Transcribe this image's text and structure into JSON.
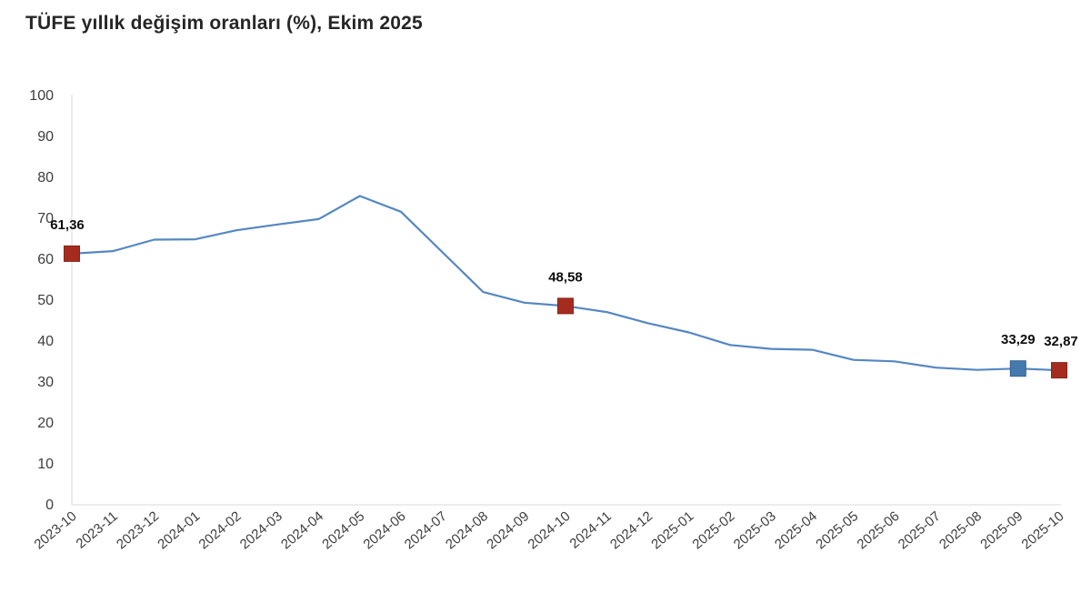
{
  "title": "TÜFE yıllık değişim oranları (%), Ekim 2025",
  "colors": {
    "line": "#5587c2",
    "marker_red": "#a62b1f",
    "marker_red_border": "#8c2218",
    "marker_blue": "#4679ae",
    "marker_blue_border": "#36608e",
    "axis_line": "#d9d9d9",
    "tick_text": "#3d3d3d",
    "title_text": "#262626",
    "value_label_text": "#0d0d0d"
  },
  "chart_data": {
    "type": "line",
    "title": "TÜFE yıllık değişim oranları (%), Ekim 2025",
    "categories": [
      "2023-10",
      "2023-11",
      "2023-12",
      "2024-01",
      "2024-02",
      "2024-03",
      "2024-04",
      "2024-05",
      "2024-06",
      "2024-07",
      "2024-08",
      "2024-09",
      "2024-10",
      "2024-11",
      "2024-12",
      "2025-01",
      "2025-02",
      "2025-03",
      "2025-04",
      "2025-05",
      "2025-06",
      "2025-07",
      "2025-08",
      "2025-09",
      "2025-10"
    ],
    "values": [
      61.36,
      61.98,
      64.77,
      64.86,
      67.07,
      68.5,
      69.8,
      75.45,
      71.6,
      61.78,
      51.97,
      49.38,
      48.58,
      47.09,
      44.38,
      42.12,
      39.05,
      38.1,
      37.86,
      35.41,
      35.05,
      33.52,
      32.95,
      33.29,
      32.87
    ],
    "xlabel": "",
    "ylabel": "",
    "ylim": [
      0,
      100
    ],
    "ytick_step": 10,
    "grid": false,
    "legend": false,
    "x_label_rotation": -40,
    "annotated_points": [
      {
        "index": 0,
        "label": "61,36",
        "color": "red",
        "dx": -5
      },
      {
        "index": 12,
        "label": "48,58",
        "color": "red",
        "dx": 0
      },
      {
        "index": 23,
        "label": "33,29",
        "color": "blue",
        "dx": 0
      },
      {
        "index": 24,
        "label": "32,87",
        "color": "red",
        "dx": 2
      }
    ]
  }
}
